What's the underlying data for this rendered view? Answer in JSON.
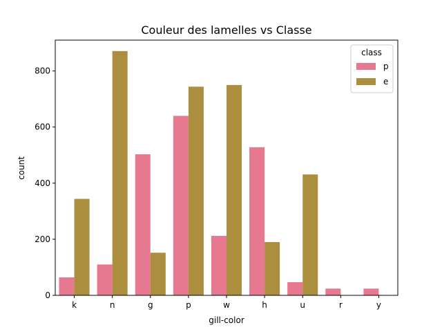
{
  "chart_data": {
    "type": "bar",
    "title": "Couleur des lamelles vs Classe",
    "xlabel": "gill-color",
    "ylabel": "count",
    "categories": [
      "k",
      "n",
      "g",
      "p",
      "w",
      "h",
      "u",
      "r",
      "y"
    ],
    "ylim": [
      0,
      910
    ],
    "yticks": [
      0,
      200,
      400,
      600,
      800
    ],
    "legend": {
      "title": "class",
      "placement": "top-right"
    },
    "series": [
      {
        "name": "p",
        "color": "#e6788f",
        "values": [
          64,
          110,
          503,
          640,
          212,
          528,
          47,
          24,
          24
        ]
      },
      {
        "name": "e",
        "color": "#ab8f3f",
        "values": [
          344,
          871,
          152,
          744,
          750,
          190,
          431,
          0,
          0
        ]
      }
    ]
  }
}
